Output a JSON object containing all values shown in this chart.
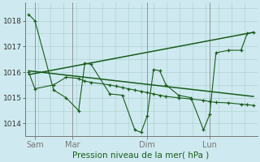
{
  "background_color": "#ceeaf0",
  "grid_color_major": "#aacccc",
  "grid_color_minor": "#bbdddd",
  "line_color": "#1a5c1a",
  "marker_color": "#1a5c1a",
  "ylim": [
    1013.5,
    1018.7
  ],
  "yticks": [
    1014,
    1015,
    1016,
    1017,
    1018
  ],
  "ytick_fontsize": 6.5,
  "xlim": [
    -0.3,
    18.3
  ],
  "xtick_positions": [
    0.5,
    3.5,
    9.5,
    14.5
  ],
  "xtick_labels": [
    "Sam",
    "Mar",
    "Dim",
    "Lun"
  ],
  "xtick_fontsize": 7,
  "xlabel": "Pression niveau de la mer( hPa )",
  "xlabel_fontsize": 7.5,
  "xlabel_color": "#1a5c1a",
  "series1_x": [
    0,
    0.5,
    2,
    3,
    4,
    4.5,
    5.0,
    6.5,
    7.5,
    8.5,
    9,
    9.5,
    10,
    10.5,
    11,
    12,
    13,
    14,
    14.5,
    15,
    16,
    17,
    17.5,
    18
  ],
  "series1_y": [
    1018.25,
    1018.0,
    1015.3,
    1015.0,
    1014.5,
    1016.35,
    1016.3,
    1015.15,
    1015.1,
    1013.75,
    1013.65,
    1014.3,
    1016.1,
    1016.05,
    1015.5,
    1015.1,
    1015.0,
    1013.75,
    1014.35,
    1016.75,
    1016.85,
    1016.85,
    1017.5,
    1017.55
  ],
  "series2_x": [
    0,
    0.5,
    2,
    3,
    4,
    4.5,
    5.0,
    6.5,
    7,
    7.5,
    8,
    8.5,
    9,
    9.5,
    10,
    10.5,
    11,
    12,
    13,
    14,
    14.5,
    15,
    16,
    17,
    17.5,
    18
  ],
  "series2_y": [
    1016.0,
    1015.35,
    1015.5,
    1015.8,
    1015.75,
    1015.65,
    1015.6,
    1015.5,
    1015.45,
    1015.4,
    1015.35,
    1015.3,
    1015.25,
    1015.2,
    1015.15,
    1015.1,
    1015.05,
    1015.0,
    1014.95,
    1014.9,
    1014.85,
    1014.82,
    1014.8,
    1014.75,
    1014.73,
    1014.7
  ],
  "trend1_x": [
    0,
    18
  ],
  "trend1_y": [
    1015.9,
    1017.55
  ],
  "trend2_x": [
    0,
    18
  ],
  "trend2_y": [
    1016.05,
    1015.05
  ],
  "vline_positions": [
    0.5,
    3.5,
    9.5,
    14.5
  ]
}
